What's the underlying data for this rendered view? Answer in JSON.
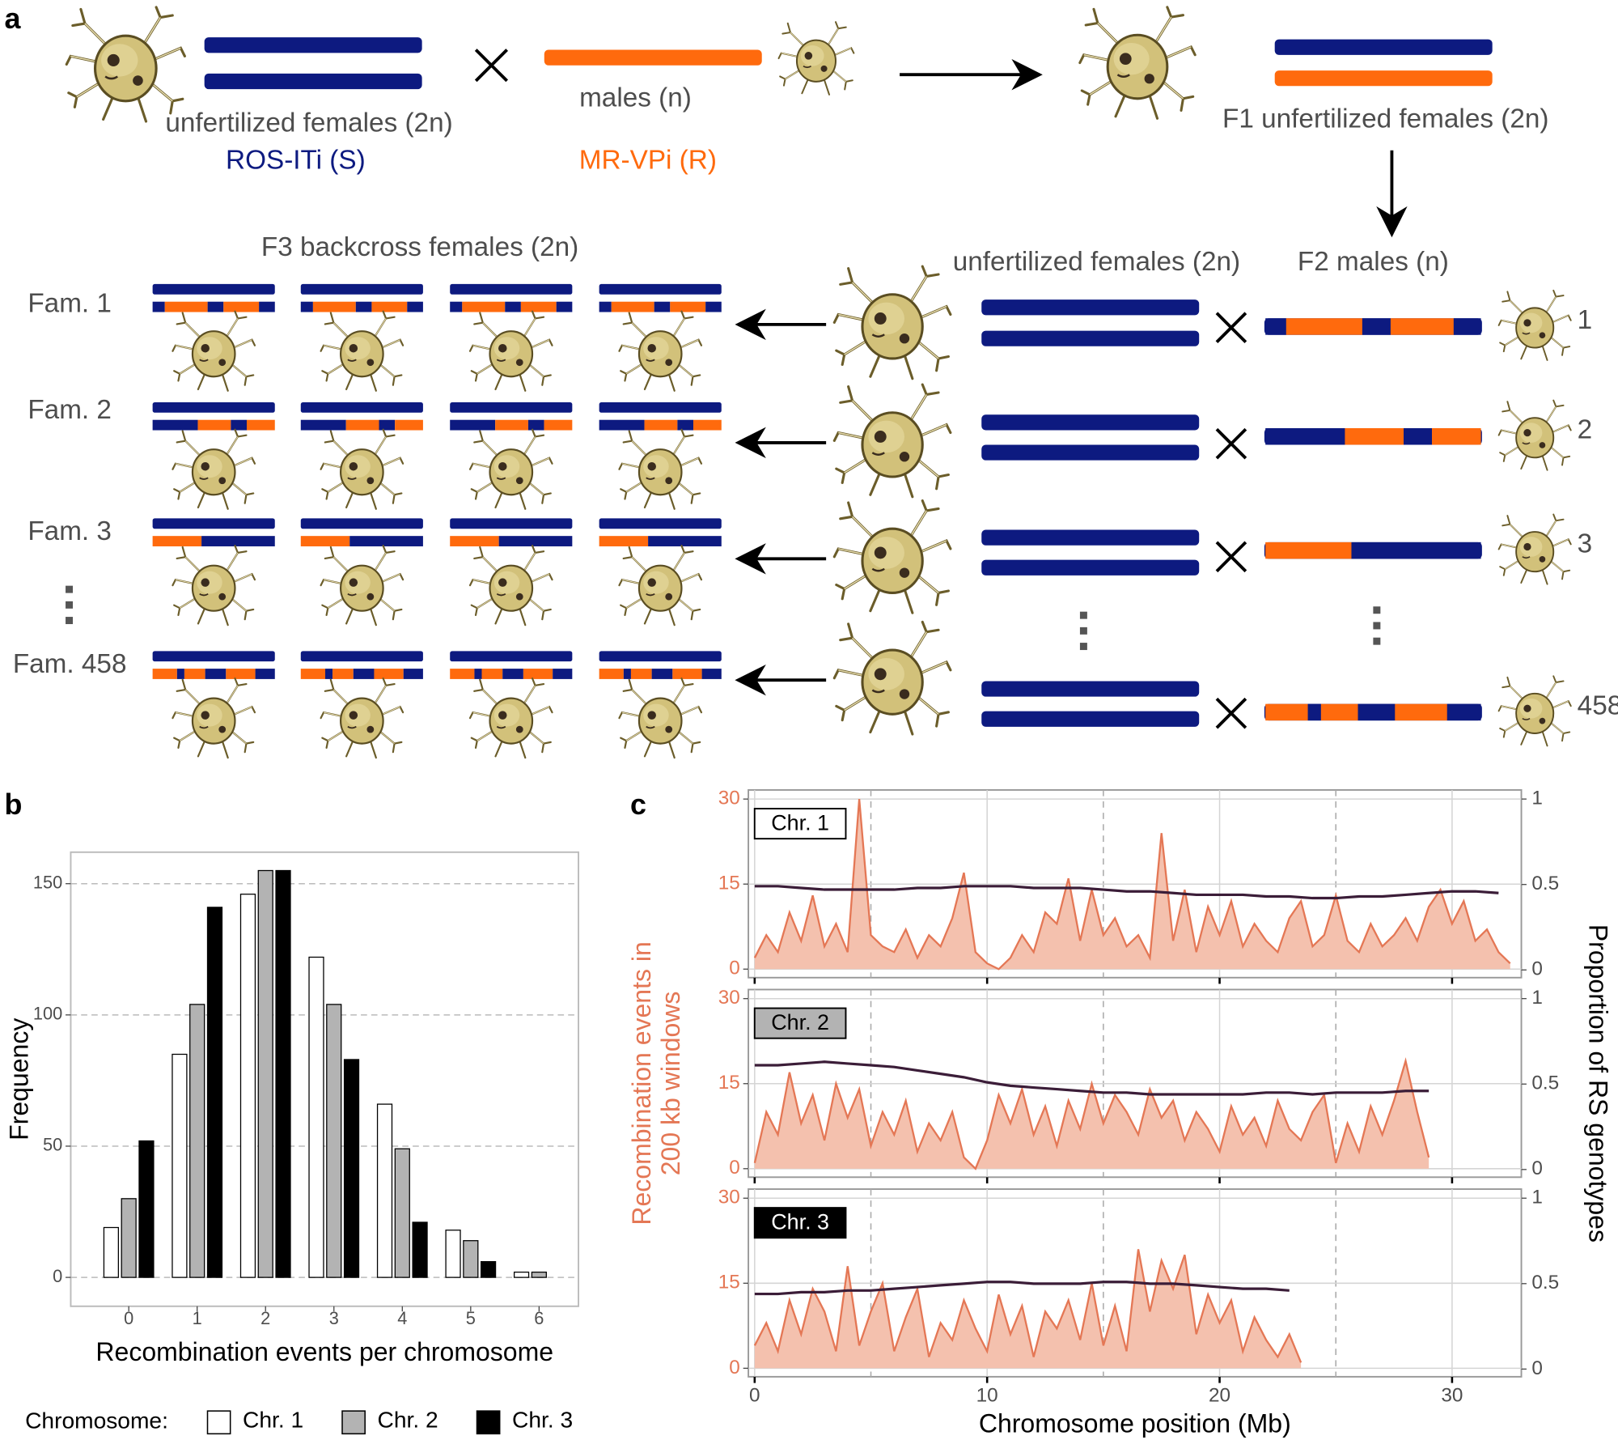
{
  "diagram": {
    "panel_labels": [
      "a",
      "b",
      "c"
    ],
    "parent_female": {
      "label": "unfertilized females (2n)",
      "strain": "ROS-ITi (S)"
    },
    "parent_male": {
      "label": "males (n)",
      "strain": "MR-VPi (R)"
    },
    "f1": "F1 unfertilized females (2n)",
    "f3": "F3 backcross females (2n)",
    "backcross_female": "unfertilized females (2n)",
    "f2": "F2 males (n)",
    "families": [
      {
        "label": "Fam. 1",
        "male": "1"
      },
      {
        "label": "Fam. 2",
        "male": "2"
      },
      {
        "label": "Fam. 3",
        "male": "3"
      },
      {
        "label": "Fam. 458",
        "male": "458"
      }
    ]
  },
  "chart_data": [
    {
      "type": "bar",
      "xlabel": "Recombination events per chromosome",
      "ylabel": "Frequency",
      "categories": [
        "0",
        "1",
        "2",
        "3",
        "4",
        "5",
        "6"
      ],
      "series": [
        {
          "name": "Chr. 1",
          "color": "#ffffff",
          "values": [
            19,
            85,
            146,
            122,
            66,
            18,
            2
          ]
        },
        {
          "name": "Chr. 2",
          "color": "#b3b3b3",
          "values": [
            30,
            104,
            155,
            104,
            49,
            14,
            2
          ]
        },
        {
          "name": "Chr. 3",
          "color": "#000000",
          "values": [
            52,
            141,
            155,
            83,
            21,
            6,
            0
          ]
        }
      ],
      "ylim": [
        -11,
        162
      ],
      "yticks": [
        0,
        50,
        100,
        150
      ],
      "grid": true,
      "legend": "bottom",
      "legend_title": "Chromosome:"
    },
    {
      "type": "area",
      "tag": "Chr. 1",
      "tag_color": "#ffffff",
      "xlim": [
        -0.27,
        32.98
      ],
      "xticks": [
        0,
        10,
        20,
        30
      ],
      "xgrid_minor": [
        5,
        15,
        25
      ],
      "ylim": [
        -1.5,
        31.6
      ],
      "yticks": [
        0,
        15,
        30
      ],
      "y2lim": [
        -0.045,
        1.053
      ],
      "y2ticks": [
        0,
        0.5,
        1
      ],
      "fill_color": "#f4c1ae",
      "line_color": "#e47755",
      "proportion_color": "#3b1d38",
      "events": {
        "x": [
          0,
          0.5,
          1,
          1.5,
          2,
          2.5,
          3,
          3.5,
          4,
          4.5,
          5,
          5.5,
          6,
          6.5,
          7,
          7.5,
          8,
          8.5,
          9,
          9.5,
          10,
          10.5,
          11,
          11.5,
          12,
          12.5,
          13,
          13.5,
          14,
          14.5,
          15,
          15.5,
          16,
          16.5,
          17,
          17.5,
          18,
          18.5,
          19,
          19.5,
          20,
          20.5,
          21,
          21.5,
          22,
          22.5,
          23,
          23.5,
          24,
          24.5,
          25,
          25.5,
          26,
          26.5,
          27,
          27.5,
          28,
          28.5,
          29,
          29.5,
          30,
          30.5,
          31,
          31.5,
          32,
          32.5
        ],
        "values": [
          2,
          6,
          3,
          10,
          5,
          13,
          4,
          8,
          3,
          30,
          6,
          4,
          3,
          7,
          2,
          6,
          4,
          9,
          17,
          3,
          1,
          0,
          2,
          6,
          3,
          10,
          8,
          16,
          5,
          14,
          6,
          9,
          4,
          6,
          2,
          24,
          5,
          14,
          3,
          11,
          6,
          12,
          4,
          8,
          5,
          3,
          9,
          12,
          4,
          6,
          13,
          5,
          3,
          8,
          4,
          6,
          9,
          5,
          11,
          14,
          8,
          12,
          5,
          7,
          3,
          1
        ]
      },
      "proportion": {
        "x": [
          0,
          1,
          2,
          3,
          4,
          5,
          6,
          7,
          8,
          9,
          10,
          11,
          12,
          13,
          14,
          15,
          16,
          17,
          18,
          19,
          20,
          21,
          22,
          23,
          24,
          25,
          26,
          27,
          28,
          29,
          30,
          31,
          32
        ],
        "values": [
          0.49,
          0.49,
          0.48,
          0.47,
          0.47,
          0.47,
          0.47,
          0.48,
          0.48,
          0.49,
          0.49,
          0.49,
          0.48,
          0.48,
          0.48,
          0.47,
          0.46,
          0.46,
          0.45,
          0.44,
          0.44,
          0.44,
          0.43,
          0.43,
          0.42,
          0.42,
          0.43,
          0.43,
          0.44,
          0.45,
          0.46,
          0.46,
          0.45
        ]
      }
    },
    {
      "type": "area",
      "tag": "Chr. 2",
      "tag_color": "#b3b3b3",
      "ylabel": [
        "Recombination events in",
        "200 kb windows"
      ],
      "y2label": "Proportion of RS genotypes",
      "xlim": [
        -0.27,
        32.98
      ],
      "xticks": [
        0,
        10,
        20,
        30
      ],
      "xgrid_minor": [
        5,
        15,
        25
      ],
      "ylim": [
        -1.5,
        31.6
      ],
      "yticks": [
        0,
        15,
        30
      ],
      "y2lim": [
        -0.045,
        1.053
      ],
      "y2ticks": [
        0,
        0.5,
        1
      ],
      "fill_color": "#f4c1ae",
      "line_color": "#e47755",
      "proportion_color": "#3b1d38",
      "events": {
        "x": [
          0,
          0.5,
          1,
          1.5,
          2,
          2.5,
          3,
          3.5,
          4,
          4.5,
          5,
          5.5,
          6,
          6.5,
          7,
          7.5,
          8,
          8.5,
          9,
          9.5,
          10,
          10.5,
          11,
          11.5,
          12,
          12.5,
          13,
          13.5,
          14,
          14.5,
          15,
          15.5,
          16,
          16.5,
          17,
          17.5,
          18,
          18.5,
          19,
          19.5,
          20,
          20.5,
          21,
          21.5,
          22,
          22.5,
          23,
          23.5,
          24,
          24.5,
          25,
          25.5,
          26,
          26.5,
          27,
          27.5,
          28,
          28.5,
          29
        ],
        "values": [
          1,
          10,
          6,
          17,
          8,
          13,
          5,
          15,
          9,
          14,
          4,
          10,
          6,
          12,
          3,
          8,
          5,
          10,
          2,
          0,
          5,
          13,
          8,
          14,
          6,
          11,
          4,
          12,
          7,
          15,
          8,
          13,
          10,
          6,
          14,
          9,
          12,
          5,
          10,
          7,
          3,
          11,
          6,
          9,
          4,
          12,
          7,
          5,
          10,
          13,
          1,
          8,
          3,
          11,
          6,
          12,
          19,
          10,
          2
        ]
      },
      "proportion": {
        "x": [
          0,
          1,
          2,
          3,
          4,
          5,
          6,
          7,
          8,
          9,
          10,
          11,
          12,
          13,
          14,
          15,
          16,
          17,
          18,
          19,
          20,
          21,
          22,
          23,
          24,
          25,
          26,
          27,
          28,
          29
        ],
        "values": [
          0.61,
          0.61,
          0.62,
          0.63,
          0.62,
          0.61,
          0.6,
          0.58,
          0.56,
          0.54,
          0.51,
          0.49,
          0.48,
          0.47,
          0.46,
          0.45,
          0.45,
          0.44,
          0.44,
          0.44,
          0.44,
          0.44,
          0.45,
          0.45,
          0.44,
          0.45,
          0.45,
          0.45,
          0.46,
          0.46
        ]
      }
    },
    {
      "type": "area",
      "tag": "Chr. 3",
      "tag_color": "#000000",
      "xlabel": "Chromosome position (Mb)",
      "xlim": [
        -0.27,
        32.98
      ],
      "xticks": [
        0,
        10,
        20,
        30
      ],
      "xgrid_minor": [
        5,
        15,
        25
      ],
      "ylim": [
        -1.5,
        31.6
      ],
      "yticks": [
        0,
        15,
        30
      ],
      "y2lim": [
        -0.045,
        1.053
      ],
      "y2ticks": [
        0,
        0.5,
        1
      ],
      "fill_color": "#f4c1ae",
      "line_color": "#e47755",
      "proportion_color": "#3b1d38",
      "events": {
        "x": [
          0,
          0.5,
          1,
          1.5,
          2,
          2.5,
          3,
          3.5,
          4,
          4.5,
          5,
          5.5,
          6,
          6.5,
          7,
          7.5,
          8,
          8.5,
          9,
          9.5,
          10,
          10.5,
          11,
          11.5,
          12,
          12.5,
          13,
          13.5,
          14,
          14.5,
          15,
          15.5,
          16,
          16.5,
          17,
          17.5,
          18,
          18.5,
          19,
          19.5,
          20,
          20.5,
          21,
          21.5,
          22,
          22.5,
          23,
          23.5
        ],
        "values": [
          4,
          8,
          3,
          12,
          6,
          14,
          10,
          3,
          18,
          4,
          10,
          15,
          3,
          9,
          14,
          2,
          8,
          5,
          12,
          7,
          3,
          13,
          6,
          11,
          2,
          10,
          7,
          12,
          5,
          15,
          4,
          11,
          3,
          21,
          10,
          19,
          14,
          20,
          6,
          13,
          8,
          12,
          3,
          9,
          5,
          2,
          6,
          1
        ]
      },
      "proportion": {
        "x": [
          0,
          1,
          2,
          3,
          4,
          5,
          6,
          7,
          8,
          9,
          10,
          11,
          12,
          13,
          14,
          15,
          16,
          17,
          18,
          19,
          20,
          21,
          22,
          23
        ],
        "values": [
          0.44,
          0.44,
          0.45,
          0.45,
          0.46,
          0.46,
          0.47,
          0.48,
          0.49,
          0.5,
          0.51,
          0.51,
          0.5,
          0.5,
          0.5,
          0.51,
          0.51,
          0.5,
          0.5,
          0.49,
          0.48,
          0.47,
          0.47,
          0.46
        ]
      }
    }
  ]
}
